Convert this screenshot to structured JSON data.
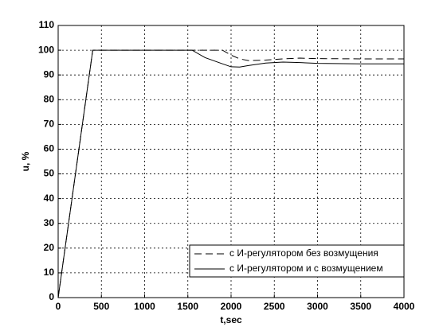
{
  "chart_data": {
    "type": "line",
    "x": [
      0,
      400,
      1550,
      1700,
      1900,
      2000,
      2100,
      2200,
      2400,
      2600,
      2800,
      3000,
      3500,
      4000
    ],
    "series": [
      {
        "name": "с И-регулятором без возмущения",
        "color": "#000000",
        "style": "dashed",
        "values": [
          0,
          100,
          100,
          100,
          100,
          98,
          96.5,
          95.8,
          96,
          96.5,
          96.8,
          96.6,
          96.5,
          96.5
        ]
      },
      {
        "name": "с И-регулятором и с возмущением",
        "color": "#000000",
        "style": "solid",
        "values": [
          0,
          100,
          100,
          97,
          94.5,
          93.3,
          93.2,
          93.8,
          94.8,
          95.2,
          95,
          94.7,
          94.5,
          94.5
        ]
      }
    ],
    "xlabel": "t,sec",
    "ylabel": "u, %",
    "xlim": [
      0,
      4000
    ],
    "xticks": [
      0,
      500,
      1000,
      1500,
      2000,
      2500,
      3000,
      3500,
      4000
    ],
    "ylim": [
      0,
      110
    ],
    "yticks": [
      0,
      10,
      20,
      30,
      40,
      50,
      60,
      70,
      80,
      90,
      100,
      110
    ],
    "grid": true,
    "legend": "lower right"
  }
}
